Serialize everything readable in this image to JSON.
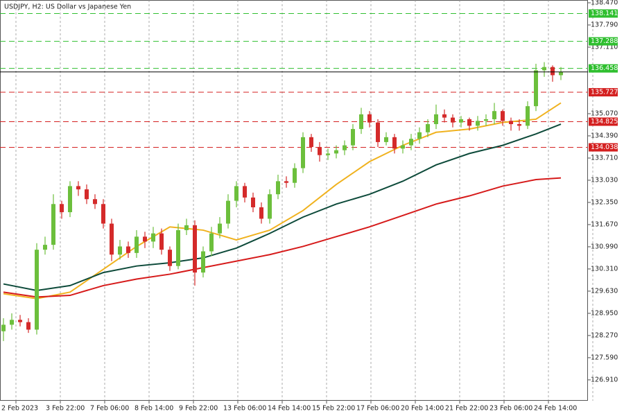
{
  "chart_data": {
    "type": "candlestick",
    "title": "USDJPY, H2:  US Dollar vs Japanese Yen",
    "x_labels": [
      "2 Feb 2023",
      "3 Feb 22:00",
      "7 Feb 06:00",
      "8 Feb 14:00",
      "9 Feb 22:00",
      "13 Feb 06:00",
      "14 Feb 14:00",
      "15 Feb 22:00",
      "17 Feb 06:00",
      "20 Feb 14:00",
      "21 Feb 22:00",
      "23 Feb 06:00",
      "24 Feb 14:00"
    ],
    "ylim": [
      126.27,
      138.555
    ],
    "yticks": [
      {
        "value": 138.47,
        "label": "138.470"
      },
      {
        "value": 137.79,
        "label": "137.790"
      },
      {
        "value": 137.11,
        "label": "137.110"
      },
      {
        "value": 135.07,
        "label": "135.070"
      },
      {
        "value": 134.39,
        "label": "134.390"
      },
      {
        "value": 133.71,
        "label": "133.710"
      },
      {
        "value": 133.03,
        "label": "133.030"
      },
      {
        "value": 132.35,
        "label": "132.350"
      },
      {
        "value": 131.67,
        "label": "131.670"
      },
      {
        "value": 130.99,
        "label": "130.990"
      },
      {
        "value": 130.31,
        "label": "130.310"
      },
      {
        "value": 129.63,
        "label": "129.630"
      },
      {
        "value": 128.95,
        "label": "128.950"
      },
      {
        "value": 128.27,
        "label": "128.270"
      },
      {
        "value": 127.59,
        "label": "127.590"
      },
      {
        "value": 126.91,
        "label": "126.910"
      }
    ],
    "up_color": "#6cbf3c",
    "down_color": "#d42a2a",
    "open": [
      128.4,
      128.6,
      128.75,
      128.68,
      128.45,
      130.9,
      131.05,
      132.3,
      132.05,
      132.85,
      132.75,
      132.45,
      132.3,
      131.7,
      130.75,
      131.0,
      130.8,
      131.3,
      131.15,
      131.4,
      130.9,
      130.4,
      131.5,
      131.65,
      130.2,
      130.85,
      131.4,
      131.7,
      132.4,
      132.85,
      132.5,
      132.2,
      131.85,
      132.6,
      133.0,
      132.95,
      133.4,
      134.35,
      134.05,
      133.8,
      133.85,
      133.95,
      134.1,
      134.6,
      135.05,
      134.8,
      134.2,
      134.35,
      134.0,
      134.1,
      134.3,
      134.5,
      134.75,
      135.05,
      134.95,
      134.8,
      134.9,
      134.7,
      134.85,
      134.9,
      135.15,
      134.85,
      134.75,
      134.7,
      135.3,
      136.4,
      136.5,
      136.25
    ],
    "high": [
      128.8,
      128.95,
      128.9,
      128.8,
      131.1,
      131.3,
      132.6,
      132.4,
      133.0,
      133.0,
      132.9,
      132.6,
      132.45,
      131.85,
      131.2,
      131.15,
      131.5,
      131.45,
      131.6,
      131.55,
      131.0,
      131.7,
      131.85,
      131.8,
      131.0,
      131.6,
      131.9,
      132.6,
      133.0,
      132.95,
      132.65,
      132.35,
      132.75,
      133.2,
      133.15,
      133.55,
      134.5,
      134.45,
      134.2,
      134.0,
      134.1,
      134.25,
      134.75,
      135.25,
      135.15,
      134.9,
      134.5,
      134.45,
      134.25,
      134.45,
      134.65,
      134.9,
      135.35,
      135.2,
      135.05,
      135.0,
      134.95,
      135.0,
      135.05,
      135.4,
      135.2,
      134.95,
      134.9,
      135.45,
      136.6,
      136.65,
      136.55,
      136.5
    ],
    "low": [
      128.1,
      128.45,
      128.55,
      128.35,
      128.3,
      130.75,
      130.9,
      131.85,
      131.9,
      132.55,
      132.3,
      132.15,
      131.55,
      130.55,
      130.6,
      130.65,
      130.65,
      130.95,
      130.95,
      130.75,
      130.25,
      130.3,
      131.35,
      129.8,
      130.05,
      130.7,
      131.25,
      131.55,
      132.2,
      132.35,
      132.05,
      131.7,
      131.7,
      132.45,
      132.8,
      132.8,
      133.25,
      133.9,
      133.6,
      133.65,
      133.7,
      133.8,
      133.95,
      134.45,
      134.65,
      134.05,
      134.1,
      133.85,
      133.85,
      133.95,
      134.15,
      134.35,
      134.6,
      134.8,
      134.65,
      134.65,
      134.55,
      134.55,
      134.7,
      134.75,
      134.7,
      134.55,
      134.55,
      134.6,
      135.15,
      136.2,
      136.05,
      136.1
    ],
    "close": [
      128.6,
      128.75,
      128.68,
      128.45,
      130.9,
      131.05,
      132.3,
      132.05,
      132.85,
      132.75,
      132.45,
      132.3,
      131.7,
      130.75,
      131.0,
      130.8,
      131.3,
      131.15,
      131.4,
      130.9,
      130.4,
      131.5,
      131.65,
      130.2,
      130.85,
      131.4,
      131.7,
      132.4,
      132.85,
      132.5,
      132.2,
      131.85,
      132.6,
      133.0,
      132.95,
      133.4,
      134.35,
      134.05,
      133.8,
      133.85,
      133.95,
      134.1,
      134.6,
      135.05,
      134.8,
      134.2,
      134.35,
      134.0,
      134.1,
      134.3,
      134.5,
      134.75,
      135.05,
      134.95,
      134.8,
      134.9,
      134.7,
      134.85,
      134.9,
      135.15,
      134.85,
      134.75,
      134.7,
      135.3,
      136.4,
      136.5,
      136.25,
      136.35
    ],
    "series": [
      {
        "color": "#f0b21e",
        "x": [
          0,
          4,
          8,
          12,
          16,
          20,
          24,
          28,
          32,
          36,
          40,
          44,
          48,
          52,
          56,
          60,
          64,
          67
        ],
        "values": [
          129.55,
          129.4,
          129.6,
          130.3,
          131.0,
          131.6,
          131.5,
          131.2,
          131.5,
          132.1,
          132.9,
          133.6,
          134.1,
          134.5,
          134.6,
          134.8,
          134.9,
          135.4
        ]
      },
      {
        "color": "#0d4a3a",
        "x": [
          0,
          4,
          8,
          12,
          16,
          20,
          24,
          28,
          32,
          36,
          40,
          44,
          48,
          52,
          56,
          60,
          64,
          67
        ],
        "values": [
          129.85,
          129.65,
          129.8,
          130.2,
          130.4,
          130.5,
          130.65,
          130.95,
          131.4,
          131.9,
          132.3,
          132.6,
          133.0,
          133.5,
          133.85,
          134.1,
          134.45,
          134.75
        ]
      },
      {
        "color": "#d61a1a",
        "x": [
          0,
          4,
          8,
          12,
          16,
          20,
          24,
          28,
          32,
          36,
          40,
          44,
          48,
          52,
          56,
          60,
          64,
          67
        ],
        "values": [
          129.6,
          129.45,
          129.5,
          129.8,
          130.0,
          130.15,
          130.35,
          130.55,
          130.75,
          131.0,
          131.3,
          131.6,
          131.95,
          132.3,
          132.55,
          132.85,
          133.05,
          133.1
        ]
      }
    ],
    "levels": [
      {
        "value": 138.141,
        "color": "#2fbf2f"
      },
      {
        "value": 137.288,
        "color": "#2fbf2f"
      },
      {
        "value": 136.458,
        "color": "#2fbf2f"
      },
      {
        "value": 135.727,
        "color": "#d42020"
      },
      {
        "value": 134.825,
        "color": "#d42020"
      },
      {
        "value": 134.038,
        "color": "#d42020"
      }
    ]
  }
}
